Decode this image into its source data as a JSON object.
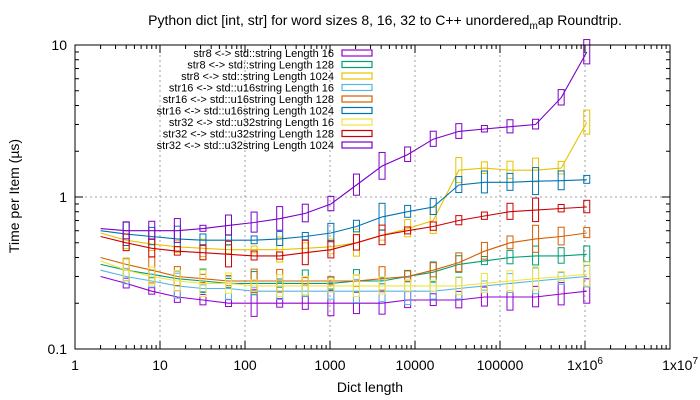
{
  "chart_data": {
    "type": "line",
    "title": "Python dict [int, str] for word sizes 8, 16, 32 to C++ unordered_map Roundtrip.",
    "title_parts": {
      "before": "Python dict [int, str] for word sizes 8, 16, 32 to C++ unordered",
      "sub": "m",
      "after": "ap Roundtrip."
    },
    "xlabel": "Dict length",
    "ylabel": "Time per Item (µs)",
    "xscale": "log",
    "yscale": "log",
    "xlim": [
      1,
      10000000
    ],
    "ylim": [
      0.1,
      10
    ],
    "grid": true,
    "legend_position": "top-left",
    "x_ticks": [
      {
        "value": 1,
        "label": "1"
      },
      {
        "value": 10,
        "label": "10"
      },
      {
        "value": 100,
        "label": "100"
      },
      {
        "value": 1000,
        "label": "1000"
      },
      {
        "value": 10000,
        "label": "10000"
      },
      {
        "value": 100000,
        "label": "100000"
      },
      {
        "value": 1000000,
        "label": "1x10^6"
      },
      {
        "value": 10000000,
        "label": "1x10^7"
      }
    ],
    "y_ticks": [
      {
        "value": 0.1,
        "label": "0.1"
      },
      {
        "value": 1,
        "label": "1"
      },
      {
        "value": 10,
        "label": "10"
      }
    ],
    "x": [
      2,
      4,
      8,
      16,
      32,
      64,
      128,
      256,
      512,
      1024,
      2048,
      4096,
      8192,
      16384,
      32768,
      65536,
      131072,
      262144,
      524288,
      1048576
    ],
    "series": [
      {
        "name": "str8 <-> std::string Length 16",
        "color": "#9400d3",
        "values": [
          0.3,
          0.27,
          0.24,
          0.22,
          0.21,
          0.2,
          0.2,
          0.2,
          0.2,
          0.2,
          0.2,
          0.2,
          0.21,
          0.21,
          0.21,
          0.22,
          0.22,
          0.22,
          0.23,
          0.24
        ]
      },
      {
        "name": "str8 <-> std::string Length 128",
        "color": "#009e73",
        "values": [
          0.36,
          0.33,
          0.31,
          0.29,
          0.28,
          0.27,
          0.27,
          0.27,
          0.27,
          0.27,
          0.28,
          0.28,
          0.3,
          0.32,
          0.36,
          0.38,
          0.4,
          0.41,
          0.41,
          0.42
        ]
      },
      {
        "name": "str8 <-> std::string Length 1024",
        "color": "#e6c300",
        "values": [
          0.58,
          0.52,
          0.49,
          0.47,
          0.46,
          0.45,
          0.45,
          0.45,
          0.46,
          0.47,
          0.5,
          0.56,
          0.62,
          0.7,
          1.5,
          1.55,
          1.5,
          1.5,
          1.55,
          3.1
        ]
      },
      {
        "name": "str16 <-> std::u16string Length 16",
        "color": "#56b4e9",
        "values": [
          0.33,
          0.3,
          0.28,
          0.26,
          0.25,
          0.25,
          0.24,
          0.24,
          0.24,
          0.24,
          0.24,
          0.24,
          0.24,
          0.24,
          0.25,
          0.26,
          0.27,
          0.28,
          0.29,
          0.3
        ]
      },
      {
        "name": "str16 <-> std::u16string Length 128",
        "color": "#d55e00",
        "values": [
          0.4,
          0.36,
          0.33,
          0.3,
          0.29,
          0.28,
          0.28,
          0.28,
          0.28,
          0.28,
          0.28,
          0.29,
          0.3,
          0.33,
          0.37,
          0.44,
          0.5,
          0.53,
          0.55,
          0.58
        ]
      },
      {
        "name": "str16 <-> std::u16string Length 1024",
        "color": "#0072b2",
        "values": [
          0.6,
          0.57,
          0.55,
          0.53,
          0.52,
          0.52,
          0.52,
          0.53,
          0.55,
          0.58,
          0.64,
          0.74,
          0.8,
          0.86,
          1.2,
          1.25,
          1.25,
          1.27,
          1.28,
          1.3
        ]
      },
      {
        "name": "str32 <-> std::u32string Length 16",
        "color": "#f0e442",
        "values": [
          0.38,
          0.33,
          0.3,
          0.28,
          0.27,
          0.27,
          0.26,
          0.26,
          0.26,
          0.26,
          0.26,
          0.26,
          0.26,
          0.26,
          0.26,
          0.27,
          0.28,
          0.29,
          0.3,
          0.31
        ]
      },
      {
        "name": "str32 <-> std::u32string Length 128",
        "color": "#cc0000",
        "values": [
          0.55,
          0.5,
          0.46,
          0.44,
          0.43,
          0.42,
          0.41,
          0.41,
          0.43,
          0.45,
          0.5,
          0.56,
          0.6,
          0.64,
          0.7,
          0.75,
          0.8,
          0.82,
          0.84,
          0.86
        ]
      },
      {
        "name": "str32 <-> std::u32string Length 1024",
        "color": "#7b00c8",
        "values": [
          0.62,
          0.6,
          0.6,
          0.6,
          0.62,
          0.65,
          0.68,
          0.72,
          0.78,
          0.9,
          1.2,
          1.6,
          1.9,
          2.4,
          2.7,
          2.8,
          2.9,
          3.0,
          4.5,
          9.0
        ]
      }
    ]
  }
}
